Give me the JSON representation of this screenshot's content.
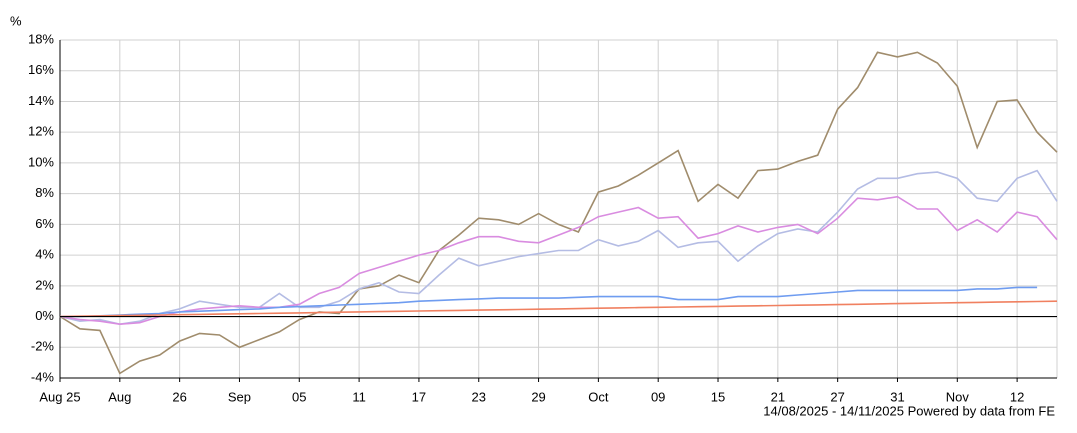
{
  "chart_data": {
    "type": "line",
    "y_unit": "%",
    "footer": "14/08/2025 - 14/11/2025 Powered by data from FE",
    "categories": [
      "Aug 25",
      null,
      null,
      "Aug",
      null,
      null,
      "26",
      null,
      null,
      "Sep",
      null,
      null,
      "05",
      null,
      null,
      "11",
      null,
      null,
      "17",
      null,
      null,
      "23",
      null,
      null,
      "29",
      null,
      null,
      "Oct",
      null,
      null,
      "09",
      null,
      null,
      "15",
      null,
      null,
      "21",
      null,
      null,
      "27",
      null,
      null,
      "31",
      null,
      null,
      "Nov",
      null,
      null,
      "12",
      null,
      null
    ],
    "ylim": [
      -4,
      18
    ],
    "yticks": [
      {
        "value": -4,
        "label": "-4%"
      },
      {
        "value": -2,
        "label": "-2%"
      },
      {
        "value": 0,
        "label": "0%"
      },
      {
        "value": 2,
        "label": "2%"
      },
      {
        "value": 4,
        "label": "4%"
      },
      {
        "value": 6,
        "label": "6%"
      },
      {
        "value": 8,
        "label": "8%"
      },
      {
        "value": 10,
        "label": "10%"
      },
      {
        "value": 12,
        "label": "12%"
      },
      {
        "value": 14,
        "label": "14%"
      },
      {
        "value": 16,
        "label": "16%"
      },
      {
        "value": 18,
        "label": "18%"
      }
    ],
    "grid": true,
    "series": [
      {
        "color": "#a08c6c",
        "values": [
          0,
          -0.8,
          -0.9,
          -3.7,
          -2.9,
          -2.5,
          -1.6,
          -1.1,
          -1.2,
          -2.0,
          -1.5,
          -1.0,
          -0.2,
          0.3,
          0.2,
          1.8,
          2.0,
          2.7,
          2.2,
          4.3,
          5.3,
          6.4,
          6.3,
          6.0,
          6.7,
          6.0,
          5.5,
          8.1,
          8.5,
          9.2,
          10.0,
          10.8,
          7.5,
          8.6,
          7.7,
          9.5,
          9.6,
          10.1,
          10.5,
          13.5,
          14.9,
          17.2,
          16.9,
          17.2,
          16.5,
          15.0,
          11.0,
          14.0,
          14.1,
          12.0,
          10.7
        ]
      },
      {
        "color": "#b4bce4",
        "values": [
          0,
          -0.3,
          -0.2,
          -0.5,
          -0.3,
          0.2,
          0.5,
          1.0,
          0.8,
          0.6,
          0.6,
          1.5,
          0.6,
          0.6,
          1.0,
          1.8,
          2.2,
          1.6,
          1.5,
          2.7,
          3.8,
          3.3,
          3.6,
          3.9,
          4.1,
          4.3,
          4.3,
          5.0,
          4.6,
          4.9,
          5.6,
          4.5,
          4.8,
          4.9,
          3.6,
          4.6,
          5.4,
          5.7,
          5.5,
          6.8,
          8.3,
          9.0,
          9.0,
          9.3,
          9.4,
          9.0,
          7.7,
          7.5,
          9.0,
          9.5,
          7.5
        ]
      },
      {
        "color": "#d98ce0",
        "values": [
          0,
          -0.2,
          -0.3,
          -0.5,
          -0.4,
          0.0,
          0.3,
          0.5,
          0.6,
          0.7,
          0.6,
          0.6,
          0.8,
          1.5,
          1.9,
          2.8,
          3.2,
          3.6,
          4.0,
          4.3,
          4.8,
          5.2,
          5.2,
          4.9,
          4.8,
          5.3,
          5.8,
          6.5,
          6.8,
          7.1,
          6.4,
          6.5,
          5.1,
          5.4,
          5.9,
          5.5,
          5.8,
          6.0,
          5.4,
          6.4,
          7.7,
          7.6,
          7.8,
          7.0,
          7.0,
          5.6,
          6.3,
          5.5,
          6.8,
          6.5,
          5.0
        ]
      },
      {
        "color": "#6f9cf0",
        "values": [
          0,
          0,
          0.05,
          0.1,
          0.15,
          0.2,
          0.3,
          0.35,
          0.4,
          0.45,
          0.5,
          0.6,
          0.65,
          0.7,
          0.75,
          0.8,
          0.85,
          0.9,
          1.0,
          1.05,
          1.1,
          1.15,
          1.2,
          1.2,
          1.2,
          1.2,
          1.25,
          1.3,
          1.3,
          1.3,
          1.3,
          1.1,
          1.1,
          1.1,
          1.3,
          1.3,
          1.3,
          1.4,
          1.5,
          1.6,
          1.7,
          1.7,
          1.7,
          1.7,
          1.7,
          1.7,
          1.8,
          1.8,
          1.9,
          1.9,
          null
        ]
      },
      {
        "color": "#f08060",
        "values": [
          0,
          0.02,
          0.04,
          0.06,
          0.08,
          0.1,
          0.12,
          0.14,
          0.16,
          0.18,
          0.2,
          0.22,
          0.24,
          0.26,
          0.28,
          0.3,
          0.32,
          0.34,
          0.36,
          0.38,
          0.4,
          0.42,
          0.44,
          0.46,
          0.48,
          0.5,
          0.52,
          0.54,
          0.56,
          0.58,
          0.6,
          0.62,
          0.64,
          0.66,
          0.68,
          0.7,
          0.72,
          0.74,
          0.76,
          0.78,
          0.8,
          0.82,
          0.84,
          0.86,
          0.88,
          0.9,
          0.92,
          0.94,
          0.96,
          0.98,
          1.0
        ]
      }
    ]
  }
}
